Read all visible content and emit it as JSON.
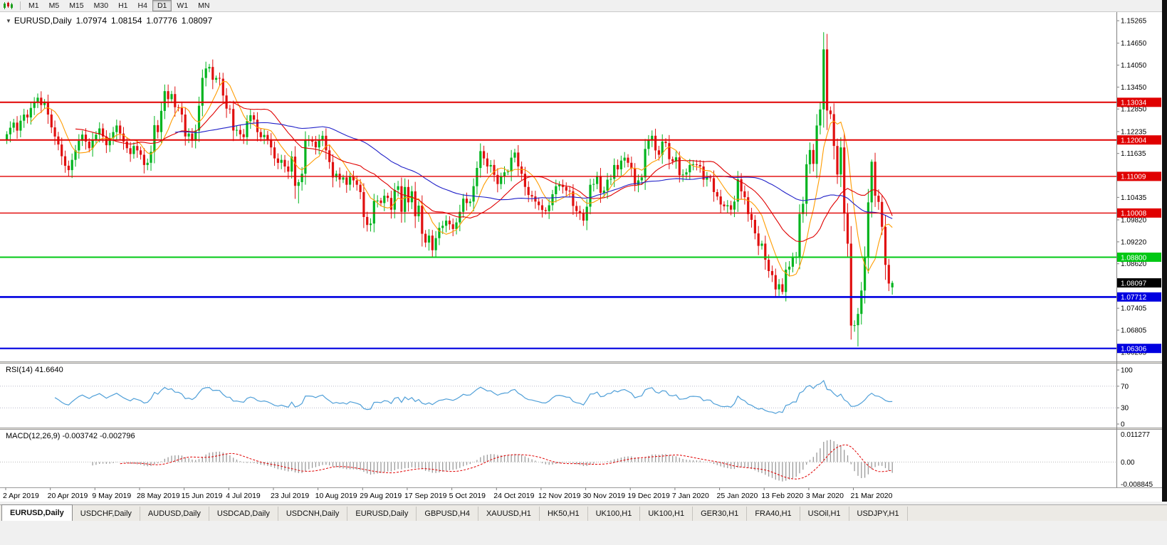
{
  "toolbar": {
    "timeframes": [
      {
        "label": "M1"
      },
      {
        "label": "M5"
      },
      {
        "label": "M15"
      },
      {
        "label": "M30"
      },
      {
        "label": "H1"
      },
      {
        "label": "H4"
      },
      {
        "label": "D1"
      },
      {
        "label": "W1"
      },
      {
        "label": "MN"
      }
    ],
    "active": "D1"
  },
  "chart_header": {
    "icon": "▼",
    "symbol": "EURUSD,Daily",
    "open": "1.07974",
    "high": "1.08154",
    "low": "1.07776",
    "close": "1.08097"
  },
  "chart_data": {
    "type": "candlestick",
    "symbol": "EURUSD,Daily",
    "price_domain": [
      1.0595,
      1.155
    ],
    "axis_ticks": [
      "1.15265",
      "1.14650",
      "1.14050",
      "1.13450",
      "1.12850",
      "1.12235",
      "1.11635",
      "1.10435",
      "1.09820",
      "1.09220",
      "1.08620",
      "1.07405",
      "1.06805",
      "1.06205"
    ],
    "hlines": [
      {
        "value": 1.13034,
        "label": "1.13034",
        "color": "#e00000",
        "width": 2
      },
      {
        "value": 1.12004,
        "label": "1.12004",
        "color": "#e00000",
        "width": 2
      },
      {
        "value": 1.11009,
        "label": "1.11009",
        "color": "#e00000",
        "width": 1.4
      },
      {
        "value": 1.10008,
        "label": "1.10008",
        "color": "#e00000",
        "width": 1.4
      },
      {
        "value": 1.088,
        "label": "1.08800",
        "color": "#00c814",
        "width": 2
      },
      {
        "value": 1.07712,
        "label": "1.07712",
        "color": "#0000e0",
        "width": 2.6
      },
      {
        "value": 1.06306,
        "label": "1.06306",
        "color": "#0000e0",
        "width": 2.2
      }
    ],
    "current_price": {
      "value": 1.08097,
      "label": "1.08097",
      "color": "#000000"
    },
    "up_color": "#00b41e",
    "down_color": "#e01010",
    "first_open": 1.12,
    "closes": [
      1.1216,
      1.1234,
      1.1248,
      1.1226,
      1.1253,
      1.127,
      1.1262,
      1.1288,
      1.1302,
      1.1316,
      1.1296,
      1.1304,
      1.127,
      1.1235,
      1.121,
      1.1188,
      1.1156,
      1.113,
      1.1118,
      1.1146,
      1.1172,
      1.1198,
      1.1215,
      1.1196,
      1.1178,
      1.1202,
      1.1215,
      1.1232,
      1.121,
      1.1186,
      1.1205,
      1.1222,
      1.124,
      1.1218,
      1.1196,
      1.1178,
      1.1162,
      1.1184,
      1.1172,
      1.116,
      1.1132,
      1.1138,
      1.1168,
      1.1241,
      1.1222,
      1.128,
      1.1334,
      1.1312,
      1.1326,
      1.129,
      1.1288,
      1.127,
      1.121,
      1.1218,
      1.1198,
      1.1226,
      1.1294,
      1.137,
      1.1396,
      1.14,
      1.1365,
      1.137,
      1.1368,
      1.1322,
      1.1286,
      1.1285,
      1.1226,
      1.1228,
      1.1216,
      1.1208,
      1.1252,
      1.1268,
      1.1256,
      1.1222,
      1.1208,
      1.1214,
      1.1202,
      1.118,
      1.115,
      1.1138,
      1.1146,
      1.1128,
      1.1114,
      1.1155,
      1.1075,
      1.1085,
      1.1108,
      1.12,
      1.12,
      1.1196,
      1.118,
      1.12,
      1.1212,
      1.1172,
      1.114,
      1.1098,
      1.1108,
      1.1092,
      1.1098,
      1.1078,
      1.1101,
      1.109,
      1.1078,
      1.1058,
      1.099,
      1.0968,
      1.0972,
      1.1034,
      1.1035,
      1.1028,
      1.1048,
      1.1042,
      1.101,
      1.1064,
      1.1074,
      1.1004,
      1.1072,
      1.103,
      1.106,
      1.0992,
      1.1021,
      1.0944,
      1.092,
      1.0939,
      1.0899,
      1.0932,
      1.096,
      1.0966,
      1.098,
      1.097,
      1.0957,
      1.0975,
      1.1004,
      1.104,
      1.1028,
      1.1032,
      1.1074,
      1.1124,
      1.117,
      1.115,
      1.1128,
      1.1132,
      1.1105,
      1.108,
      1.11,
      1.1112,
      1.1114,
      1.1152,
      1.1166,
      1.1128,
      1.1108,
      1.1072,
      1.105,
      1.1046,
      1.1032,
      1.1022,
      1.1009,
      1.1006,
      1.1022,
      1.1052,
      1.1074,
      1.1078,
      1.1072,
      1.1062,
      1.106,
      1.102,
      1.1006,
      1.1,
      1.098,
      1.1018,
      1.1078,
      1.108,
      1.1102,
      1.1056,
      1.1062,
      1.1092,
      1.1094,
      1.1132,
      1.112,
      1.1144,
      1.1152,
      1.1138,
      1.1123,
      1.1078,
      1.109,
      1.1098,
      1.1176,
      1.1199,
      1.1212,
      1.1172,
      1.116,
      1.1196,
      1.1192,
      1.1148,
      1.1142,
      1.1153,
      1.1104,
      1.1106,
      1.1112,
      1.1132,
      1.1134,
      1.1132,
      1.1128,
      1.1092,
      1.1098,
      1.1096,
      1.1058,
      1.1046,
      1.1024,
      1.1019,
      1.1022,
      1.101,
      1.1032,
      1.1093,
      1.106,
      1.1044,
      1.0998,
      1.0982,
      1.0945,
      1.0911,
      1.0917,
      1.0873,
      1.0842,
      1.0831,
      1.0792,
      1.0806,
      1.0785,
      1.0846,
      1.0854,
      1.088,
      1.088,
      1.0998,
      1.1026,
      1.1134,
      1.1173,
      1.1135,
      1.124,
      1.1284,
      1.1448,
      1.1281,
      1.1271,
      1.1184,
      1.1106,
      1.118,
      1.0999,
      1.0917,
      1.0693,
      1.0694,
      1.0725,
      1.0789,
      1.0881,
      1.103,
      1.1141,
      1.1048,
      1.1031,
      1.0963,
      1.0859,
      1.0808,
      1.08097
    ],
    "ohlc_overrides": {
      "85": {
        "low": 1.1027
      },
      "125": {
        "low": 1.0879
      },
      "226": {
        "low": 1.0778
      },
      "238": {
        "high": 1.1495
      },
      "246": {
        "low": 1.0655
      },
      "248": {
        "low": 1.0636
      },
      "252": {
        "high": 1.1147
      },
      "258": {
        "open": 1.07974,
        "high": 1.08154,
        "low": 1.07776,
        "close": 1.08097
      }
    },
    "moving_averages": [
      {
        "period": 8,
        "color": "#ff9c00"
      },
      {
        "period": 21,
        "color": "#e00000"
      },
      {
        "period": 50,
        "color": "#2020c8"
      }
    ],
    "indicators": {
      "rsi": {
        "title": "RSI(14) 41.6640",
        "period": 14,
        "levels": [
          100,
          70,
          30,
          0
        ],
        "dotted_levels": [
          70,
          30
        ],
        "color": "#4f9fd8"
      },
      "macd": {
        "title": "MACD(12,26,9) -0.003742 -0.002796",
        "fast": 12,
        "slow": 26,
        "signal_period": 9,
        "axis_labels": [
          "0.011277",
          "0.00",
          "-0.008845"
        ],
        "domain": [
          -0.008845,
          0.011277
        ],
        "histogram_color": "#9a9a9a",
        "signal_color": "#e00000"
      }
    }
  },
  "date_axis": {
    "labels": [
      "2 Apr 2019",
      "20 Apr 2019",
      "9 May 2019",
      "28 May 2019",
      "15 Jun 2019",
      "4 Jul 2019",
      "23 Jul 2019",
      "10 Aug 2019",
      "29 Aug 2019",
      "17 Sep 2019",
      "5 Oct 2019",
      "24 Oct 2019",
      "12 Nov 2019",
      "30 Nov 2019",
      "19 Dec 2019",
      "7 Jan 2020",
      "25 Jan 2020",
      "13 Feb 2020",
      "3 Mar 2020",
      "21 Mar 2020"
    ]
  },
  "tabs": {
    "items": [
      {
        "label": "EURUSD,Daily",
        "active": true
      },
      {
        "label": "USDCHF,Daily",
        "active": false
      },
      {
        "label": "AUDUSD,Daily",
        "active": false
      },
      {
        "label": "USDCAD,Daily",
        "active": false
      },
      {
        "label": "USDCNH,Daily",
        "active": false
      },
      {
        "label": "EURUSD,Daily",
        "active": false
      },
      {
        "label": "GBPUSD,H4",
        "active": false
      },
      {
        "label": "XAUUSD,H1",
        "active": false
      },
      {
        "label": "HK50,H1",
        "active": false
      },
      {
        "label": "UK100,H1",
        "active": false
      },
      {
        "label": "UK100,H1",
        "active": false
      },
      {
        "label": "GER30,H1",
        "active": false
      },
      {
        "label": "FRA40,H1",
        "active": false
      },
      {
        "label": "USOil,H1",
        "active": false
      },
      {
        "label": "USDJPY,H1",
        "active": false
      }
    ]
  }
}
